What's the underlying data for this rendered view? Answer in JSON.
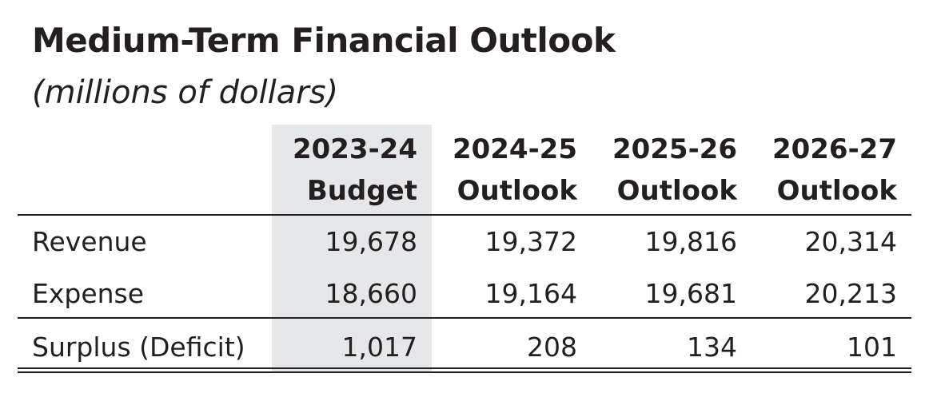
{
  "title": "Medium-Term Financial Outlook",
  "subtitle": "(millions of dollars)",
  "columns": [
    {
      "line1": "2023-24",
      "line2": "Budget"
    },
    {
      "line1": "2024-25",
      "line2": "Outlook"
    },
    {
      "line1": "2025-26",
      "line2": "Outlook"
    },
    {
      "line1": "2026-27",
      "line2": "Outlook"
    }
  ],
  "rows": [
    {
      "label": "Revenue",
      "values": [
        "19,678",
        "19,372",
        "19,816",
        "20,314"
      ]
    },
    {
      "label": "Expense",
      "values": [
        "18,660",
        "19,164",
        "19,681",
        "20,213"
      ]
    },
    {
      "label": "Surplus (Deficit)",
      "values": [
        "1,017",
        "208",
        "134",
        "101"
      ]
    }
  ],
  "colors": {
    "text": "#231f20",
    "highlight_column": "#e6e7e8"
  }
}
